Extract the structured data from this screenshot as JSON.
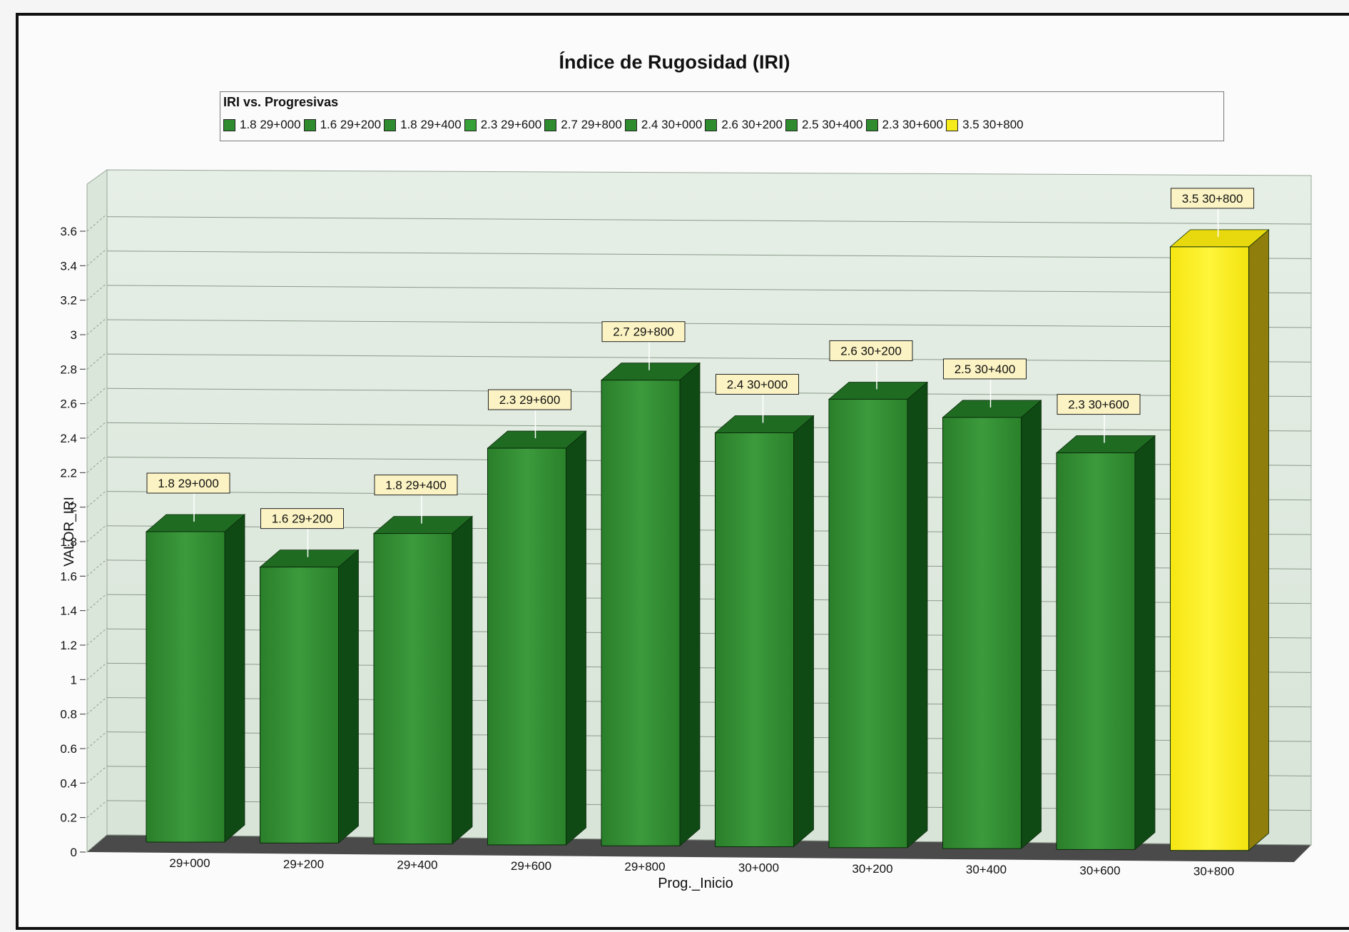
{
  "chart_data": {
    "type": "bar",
    "title": "Índice de Rugosidad (IRI)",
    "legend_title": "IRI vs. Progresivas",
    "xlabel": "Prog._Inicio",
    "ylabel": "VALOR_IRI",
    "ylim": [
      0,
      3.6
    ],
    "yticks": [
      "0",
      "0.2",
      "0.4",
      "0.6",
      "0.8",
      "1",
      "1.2",
      "1.4",
      "1.6",
      "1.8",
      "2",
      "2.2",
      "2.4",
      "2.6",
      "2.8",
      "3",
      "3.2",
      "3.4",
      "3.6"
    ],
    "categories": [
      "29+000",
      "29+200",
      "29+400",
      "29+600",
      "29+800",
      "30+000",
      "30+200",
      "30+400",
      "30+600",
      "30+800"
    ],
    "values": [
      1.8,
      1.6,
      1.8,
      2.3,
      2.7,
      2.4,
      2.6,
      2.5,
      2.3,
      3.5
    ],
    "data_labels": [
      "1.8 29+000",
      "1.6 29+200",
      "1.8 29+400",
      "2.3 29+600",
      "2.7 29+800",
      "2.4 30+000",
      "2.6 30+200",
      "2.5 30+400",
      "2.3 30+600",
      "3.5 30+800"
    ],
    "legend_entries": [
      "1.8 29+000",
      "1.6 29+200",
      "1.8 29+400",
      "2.3 29+600",
      "2.7 29+800",
      "2.4 30+000",
      "2.6 30+200",
      "2.5 30+400",
      "2.3 30+600",
      "3.5 30+800"
    ],
    "bar_colors": [
      "#2e8b2e",
      "#2e8b2e",
      "#2e8b2e",
      "#38a038",
      "#2e8b2e",
      "#2e8b2e",
      "#2e8b2e",
      "#2e8b2e",
      "#2e8b2e",
      "#f7ec1a"
    ],
    "grid": true,
    "legend_position": "top"
  }
}
